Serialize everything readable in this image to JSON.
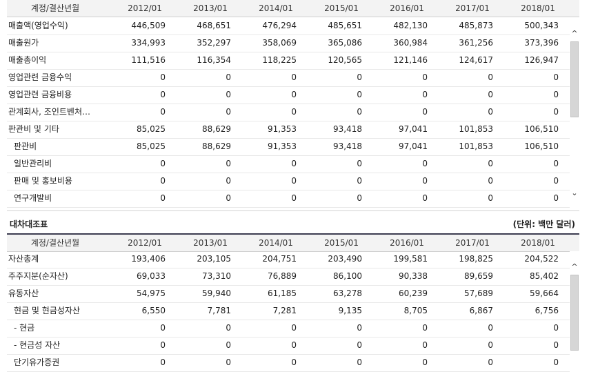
{
  "columns": [
    "계정/결산년월",
    "2012/01",
    "2013/01",
    "2014/01",
    "2015/01",
    "2016/01",
    "2017/01",
    "2018/01"
  ],
  "income": {
    "rows": [
      {
        "label": "매출액(영업수익)",
        "indent": 0,
        "values": [
          "446,509",
          "468,651",
          "476,294",
          "485,651",
          "482,130",
          "485,873",
          "500,343"
        ]
      },
      {
        "label": "매출원가",
        "indent": 0,
        "values": [
          "334,993",
          "352,297",
          "358,069",
          "365,086",
          "360,984",
          "361,256",
          "373,396"
        ]
      },
      {
        "label": "매출총이익",
        "indent": 0,
        "values": [
          "111,516",
          "116,354",
          "118,225",
          "120,565",
          "121,146",
          "124,617",
          "126,947"
        ]
      },
      {
        "label": "영업관련 금융수익",
        "indent": 0,
        "values": [
          "0",
          "0",
          "0",
          "0",
          "0",
          "0",
          "0"
        ]
      },
      {
        "label": "영업관련 금융비용",
        "indent": 0,
        "values": [
          "0",
          "0",
          "0",
          "0",
          "0",
          "0",
          "0"
        ]
      },
      {
        "label": "관계회사, 조인트벤처…",
        "indent": 0,
        "values": [
          "0",
          "0",
          "0",
          "0",
          "0",
          "0",
          "0"
        ]
      },
      {
        "label": "판관비 및 기타",
        "indent": 0,
        "values": [
          "85,025",
          "88,629",
          "91,353",
          "93,418",
          "97,041",
          "101,853",
          "106,510"
        ]
      },
      {
        "label": "판관비",
        "indent": 1,
        "values": [
          "85,025",
          "88,629",
          "91,353",
          "93,418",
          "97,041",
          "101,853",
          "106,510"
        ]
      },
      {
        "label": "일반관리비",
        "indent": 1,
        "values": [
          "0",
          "0",
          "0",
          "0",
          "0",
          "0",
          "0"
        ]
      },
      {
        "label": "판매 및 홍보비용",
        "indent": 1,
        "values": [
          "0",
          "0",
          "0",
          "0",
          "0",
          "0",
          "0"
        ]
      },
      {
        "label": "연구개발비",
        "indent": 1,
        "values": [
          "0",
          "0",
          "0",
          "0",
          "0",
          "0",
          "0"
        ]
      }
    ],
    "scroll_arrows": {
      "up": "^",
      "down": "⌄"
    }
  },
  "balance": {
    "title": "대차대조표",
    "unit": "(단위: 백만 달러)",
    "rows": [
      {
        "label": "자산총계",
        "indent": 0,
        "values": [
          "193,406",
          "203,105",
          "204,751",
          "203,490",
          "199,581",
          "198,825",
          "204,522"
        ]
      },
      {
        "label": "주주지분(순자산)",
        "indent": 0,
        "values": [
          "69,033",
          "73,310",
          "76,889",
          "86,100",
          "90,338",
          "89,659",
          "85,402"
        ]
      },
      {
        "label": "유동자산",
        "indent": 0,
        "values": [
          "54,975",
          "59,940",
          "61,185",
          "63,278",
          "60,239",
          "57,689",
          "59,664"
        ]
      },
      {
        "label": "현금 및 현금성자산",
        "indent": 1,
        "values": [
          "6,550",
          "7,781",
          "7,281",
          "9,135",
          "8,705",
          "6,867",
          "6,756"
        ]
      },
      {
        "label": "- 현금",
        "indent": 1,
        "values": [
          "0",
          "0",
          "0",
          "0",
          "0",
          "0",
          "0"
        ]
      },
      {
        "label": "- 현금성 자산",
        "indent": 1,
        "values": [
          "0",
          "0",
          "0",
          "0",
          "0",
          "0",
          "0"
        ]
      },
      {
        "label": "단기유가증권",
        "indent": 1,
        "values": [
          "0",
          "0",
          "0",
          "0",
          "0",
          "0",
          "0"
        ]
      }
    ],
    "scroll_arrows": {
      "up": "^"
    }
  }
}
